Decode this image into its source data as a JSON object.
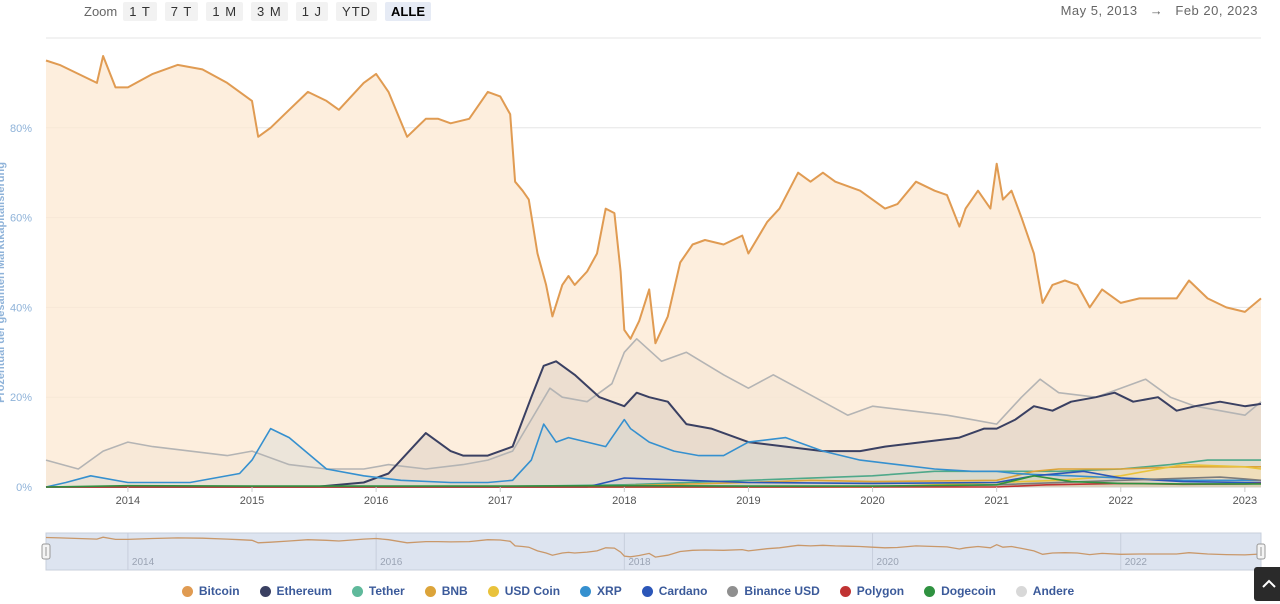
{
  "zoom": {
    "label": "Zoom",
    "buttons": [
      "1 T",
      "7 T",
      "1 M",
      "3 M",
      "1 J",
      "YTD",
      "ALLE"
    ],
    "active": "ALLE"
  },
  "range": {
    "from": "May 5, 2013",
    "arrow": "→",
    "to": "Feb 20, 2023"
  },
  "chart_data": {
    "type": "area",
    "title": "",
    "ylabel": "Prozentual der gesamten Marktkapitalisierung",
    "xlabel": "",
    "xlim": [
      2013.34,
      2023.13
    ],
    "ylim": [
      0,
      100
    ],
    "yticks": [
      0,
      20,
      40,
      60,
      80
    ],
    "ytick_labels": [
      "0%",
      "20%",
      "40%",
      "60%",
      "80%"
    ],
    "xticks": [
      2014,
      2015,
      2016,
      2017,
      2018,
      2019,
      2020,
      2021,
      2022,
      2023
    ],
    "xtick_labels": [
      "2014",
      "2015",
      "2016",
      "2017",
      "2018",
      "2019",
      "2020",
      "2021",
      "2022",
      "2023"
    ],
    "navigator_ticks": [
      "2014",
      "2016",
      "2018",
      "2020",
      "2022"
    ],
    "series": [
      {
        "name": "Andere",
        "color": "#dcdcdc",
        "line": "#b4b4b4",
        "x": [
          2013.34,
          2013.6,
          2013.8,
          2014.0,
          2014.2,
          2014.5,
          2014.8,
          2015.0,
          2015.3,
          2015.6,
          2015.9,
          2016.1,
          2016.4,
          2016.7,
          2016.9,
          2017.1,
          2017.25,
          2017.4,
          2017.5,
          2017.7,
          2017.9,
          2018.0,
          2018.1,
          2018.3,
          2018.5,
          2018.8,
          2019.0,
          2019.2,
          2019.4,
          2019.6,
          2019.8,
          2020.0,
          2020.3,
          2020.6,
          2020.8,
          2021.0,
          2021.2,
          2021.35,
          2021.5,
          2021.8,
          2022.0,
          2022.2,
          2022.4,
          2022.6,
          2022.8,
          2023.0,
          2023.13
        ],
        "y": [
          6,
          4,
          8,
          10,
          9,
          8,
          7,
          8,
          5,
          4,
          4,
          5,
          4,
          5,
          6,
          8,
          15,
          22,
          20,
          19,
          23,
          30,
          33,
          28,
          30,
          25,
          22,
          25,
          22,
          19,
          16,
          18,
          17,
          16,
          15,
          14,
          20,
          24,
          21,
          20,
          22,
          24,
          20,
          18,
          17,
          16,
          19
        ]
      },
      {
        "name": "Ethereum",
        "color": "#434b6e",
        "line": "#3a4062",
        "x": [
          2013.34,
          2015.5,
          2015.7,
          2015.9,
          2016.1,
          2016.2,
          2016.4,
          2016.5,
          2016.6,
          2016.7,
          2016.9,
          2017.1,
          2017.25,
          2017.35,
          2017.45,
          2017.6,
          2017.8,
          2018.0,
          2018.1,
          2018.2,
          2018.35,
          2018.5,
          2018.7,
          2018.9,
          2019.0,
          2019.3,
          2019.6,
          2019.9,
          2020.1,
          2020.4,
          2020.7,
          2020.9,
          2021.0,
          2021.15,
          2021.3,
          2021.45,
          2021.6,
          2021.8,
          2021.95,
          2022.1,
          2022.3,
          2022.45,
          2022.6,
          2022.8,
          2023.0,
          2023.13
        ],
        "y": [
          0,
          0,
          0.5,
          1,
          3,
          6,
          12,
          10,
          8,
          7,
          7,
          9,
          20,
          27,
          28,
          25,
          20,
          18,
          21,
          20,
          19,
          14,
          13,
          11,
          10,
          9,
          8,
          8,
          9,
          10,
          11,
          13,
          13,
          15,
          18,
          17,
          19,
          20,
          21,
          19,
          20,
          17,
          18,
          19,
          18,
          18.5
        ]
      },
      {
        "name": "Tether",
        "color": "#5fb99b",
        "line": "#4ea88a",
        "x": [
          2013.34,
          2017.0,
          2018.0,
          2019.0,
          2020.0,
          2020.5,
          2021.0,
          2021.5,
          2022.0,
          2022.4,
          2022.7,
          2023.0,
          2023.13
        ],
        "y": [
          0,
          0.1,
          0.5,
          1.5,
          2.5,
          3.5,
          3.5,
          3.5,
          4,
          5,
          6,
          6,
          6
        ]
      },
      {
        "name": "BNB",
        "color": "#e6b84f",
        "line": "#dca43a",
        "x": [
          2013.34,
          2017.5,
          2018.0,
          2019.0,
          2019.5,
          2020.0,
          2021.0,
          2021.3,
          2021.5,
          2022.0,
          2022.5,
          2023.0,
          2023.13
        ],
        "y": [
          0,
          0,
          0.3,
          1,
          1.5,
          1.2,
          1.5,
          3.5,
          4,
          4,
          4.5,
          4.5,
          4.5
        ]
      },
      {
        "name": "USD Coin",
        "color": "#f0ce4a",
        "line": "#e9c23b",
        "x": [
          2013.34,
          2020.0,
          2020.5,
          2021.0,
          2021.5,
          2022.0,
          2022.5,
          2023.0,
          2023.13
        ],
        "y": [
          0,
          0,
          0.5,
          1,
          1.5,
          2.5,
          5,
          4.5,
          4
        ]
      },
      {
        "name": "XRP",
        "color": "#3f9ad6",
        "line": "#3590cf",
        "x": [
          2013.34,
          2013.5,
          2013.7,
          2014.0,
          2014.5,
          2014.9,
          2015.0,
          2015.15,
          2015.3,
          2015.6,
          2015.9,
          2016.2,
          2016.6,
          2016.9,
          2017.1,
          2017.25,
          2017.35,
          2017.45,
          2017.55,
          2017.7,
          2017.85,
          2018.0,
          2018.05,
          2018.2,
          2018.4,
          2018.6,
          2018.8,
          2019.0,
          2019.3,
          2019.6,
          2019.9,
          2020.2,
          2020.5,
          2020.8,
          2021.0,
          2021.15,
          2021.3,
          2021.6,
          2022.0,
          2022.5,
          2023.0,
          2023.13
        ],
        "y": [
          0,
          1,
          2.5,
          1,
          1,
          3,
          6,
          13,
          11,
          4,
          2.5,
          1.5,
          1,
          1,
          1.5,
          6,
          14,
          10,
          11,
          10,
          9,
          15,
          13,
          10,
          8,
          7,
          7,
          10,
          11,
          8,
          6,
          5,
          4,
          3.5,
          3.5,
          3,
          2.8,
          2.5,
          2,
          1.5,
          1.5,
          1.5
        ]
      },
      {
        "name": "Cardano",
        "color": "#2f5ec5",
        "line": "#2b56b8",
        "x": [
          2013.34,
          2017.7,
          2018.0,
          2019.0,
          2020.0,
          2021.0,
          2021.3,
          2021.7,
          2022.0,
          2022.5,
          2023.0,
          2023.13
        ],
        "y": [
          0,
          0,
          2,
          1,
          0.8,
          1,
          2.5,
          3.5,
          2,
          1.2,
          1,
          1
        ]
      },
      {
        "name": "Binance USD",
        "color": "#8f8f8f",
        "line": "#7c7c7c",
        "x": [
          2013.34,
          2019.5,
          2020.5,
          2021.0,
          2022.0,
          2022.8,
          2023.0,
          2023.13
        ],
        "y": [
          0,
          0,
          0.2,
          0.5,
          1.5,
          2.2,
          1.8,
          1.5
        ]
      },
      {
        "name": "Polygon",
        "color": "#cc3b3b",
        "line": "#c03333",
        "x": [
          2013.34,
          2021.0,
          2021.4,
          2022.0,
          2022.5,
          2023.0,
          2023.13
        ],
        "y": [
          0,
          0,
          0.5,
          0.8,
          0.6,
          0.7,
          0.8
        ]
      },
      {
        "name": "Dogecoin",
        "color": "#3aa14a",
        "line": "#2f9240",
        "x": [
          2013.34,
          2014.0,
          2015.0,
          2016.0,
          2017.0,
          2018.0,
          2019.0,
          2020.0,
          2021.0,
          2021.3,
          2021.6,
          2022.0,
          2022.5,
          2023.0,
          2023.13
        ],
        "y": [
          0,
          0.3,
          0.2,
          0.2,
          0.2,
          0.3,
          0.2,
          0.2,
          0.5,
          2.5,
          1.2,
          0.8,
          0.7,
          0.7,
          0.7
        ]
      },
      {
        "name": "Bitcoin",
        "color": "#fce8d2",
        "line": "#e09b52",
        "x": [
          2013.34,
          2013.45,
          2013.6,
          2013.75,
          2013.8,
          2013.9,
          2014.0,
          2014.2,
          2014.4,
          2014.6,
          2014.8,
          2014.9,
          2015.0,
          2015.05,
          2015.15,
          2015.3,
          2015.45,
          2015.6,
          2015.7,
          2015.9,
          2016.0,
          2016.1,
          2016.25,
          2016.4,
          2016.5,
          2016.6,
          2016.75,
          2016.9,
          2017.0,
          2017.08,
          2017.12,
          2017.18,
          2017.23,
          2017.3,
          2017.37,
          2017.42,
          2017.5,
          2017.55,
          2017.6,
          2017.7,
          2017.78,
          2017.85,
          2017.92,
          2017.97,
          2018.0,
          2018.05,
          2018.12,
          2018.2,
          2018.25,
          2018.35,
          2018.45,
          2018.55,
          2018.65,
          2018.8,
          2018.95,
          2019.0,
          2019.15,
          2019.25,
          2019.4,
          2019.5,
          2019.6,
          2019.7,
          2019.8,
          2019.9,
          2020.0,
          2020.1,
          2020.2,
          2020.35,
          2020.5,
          2020.6,
          2020.7,
          2020.75,
          2020.85,
          2020.95,
          2021.0,
          2021.05,
          2021.12,
          2021.2,
          2021.3,
          2021.37,
          2021.45,
          2021.55,
          2021.65,
          2021.75,
          2021.85,
          2022.0,
          2022.15,
          2022.3,
          2022.45,
          2022.55,
          2022.7,
          2022.85,
          2023.0,
          2023.13
        ],
        "y": [
          95,
          94,
          92,
          90,
          96,
          89,
          89,
          92,
          94,
          93,
          90,
          88,
          86,
          78,
          80,
          84,
          88,
          86,
          84,
          90,
          92,
          88,
          78,
          82,
          82,
          81,
          82,
          88,
          87,
          83,
          68,
          66,
          64,
          52,
          45,
          38,
          45,
          47,
          45,
          48,
          52,
          62,
          61,
          48,
          35,
          33,
          37,
          44,
          32,
          38,
          50,
          54,
          55,
          54,
          56,
          52,
          59,
          62,
          70,
          68,
          70,
          68,
          67,
          66,
          64,
          62,
          63,
          68,
          66,
          65,
          58,
          62,
          66,
          62,
          72,
          64,
          66,
          60,
          52,
          41,
          45,
          46,
          45,
          40,
          44,
          41,
          42,
          42,
          42,
          46,
          42,
          40,
          39,
          42
        ]
      }
    ]
  },
  "legend": [
    "Bitcoin",
    "Ethereum",
    "Tether",
    "BNB",
    "USD Coin",
    "XRP",
    "Cardano",
    "Binance USD",
    "Polygon",
    "Dogecoin",
    "Andere"
  ],
  "colors": {
    "Bitcoin": "#e09b52",
    "Ethereum": "#3a4062",
    "Tether": "#5fb99b",
    "BNB": "#dca43a",
    "USD Coin": "#e9c23b",
    "XRP": "#3590cf",
    "Cardano": "#2b56b8",
    "Binance USD": "#8f8f8f",
    "Polygon": "#c03333",
    "Dogecoin": "#2f9240",
    "Andere": "#d8d8d8"
  },
  "scroll_top_icon": "chevron-up-icon"
}
